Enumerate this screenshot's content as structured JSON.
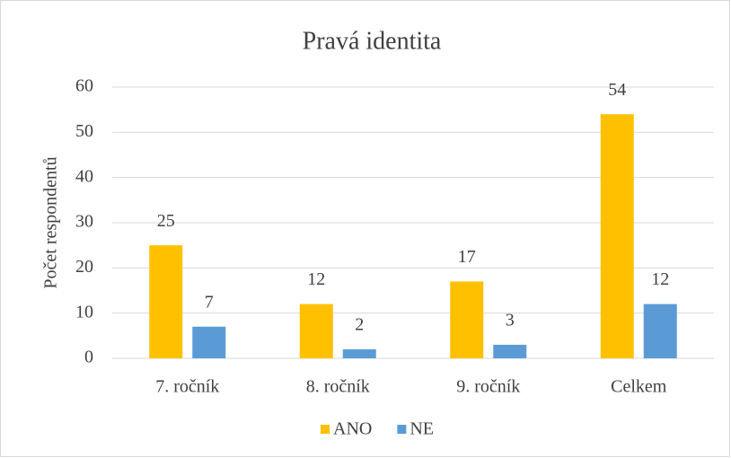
{
  "chart_data": {
    "type": "bar",
    "title": "Pravá identita",
    "y_label": "Počet respondentů",
    "categories": [
      "7. ročník",
      "8. ročník",
      "9. ročník",
      "Celkem"
    ],
    "series": [
      {
        "name": "ANO",
        "color": "#FFC000",
        "values": [
          25,
          12,
          17,
          54
        ]
      },
      {
        "name": "NE",
        "color": "#5B9BD5",
        "values": [
          7,
          2,
          3,
          12
        ]
      }
    ],
    "ylim": [
      0,
      60
    ],
    "yticks": [
      0,
      10,
      20,
      30,
      40,
      50,
      60
    ],
    "grid": true,
    "legend": "bottom"
  }
}
